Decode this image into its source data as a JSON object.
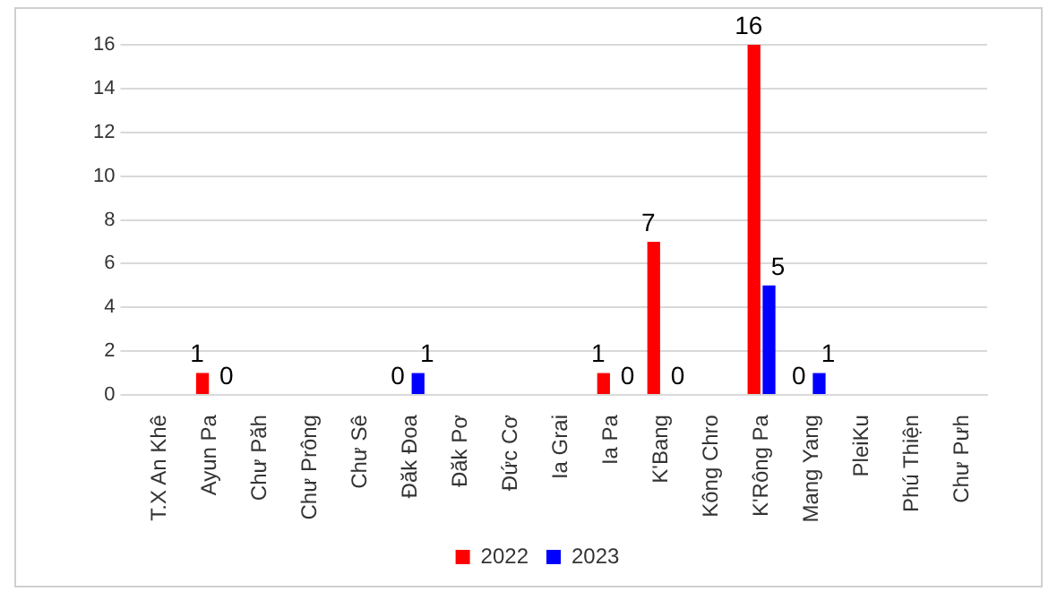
{
  "chart_data": {
    "type": "bar",
    "categories": [
      "T.X An Khê",
      "Ayun Pa",
      "Chư Păh",
      "Chư Prông",
      "Chư Sê",
      "Đăk Đoa",
      "Đăk Pơ",
      "Đức Cơ",
      "Ia Grai",
      "Ia Pa",
      "K'Bang",
      "Kông Chro",
      "K'Rông Pa",
      "Mang Yang",
      "PleiKu",
      "Phú Thiện",
      "Chư Pưh"
    ],
    "series": [
      {
        "name": "2022",
        "color": "#ff0000",
        "values": [
          0,
          1,
          0,
          0,
          0,
          0,
          0,
          0,
          0,
          1,
          7,
          0,
          16,
          0,
          0,
          0,
          0
        ],
        "value_labels": [
          null,
          "1",
          null,
          null,
          null,
          "0",
          null,
          null,
          null,
          "1",
          "7",
          null,
          "16",
          "0",
          null,
          null,
          null
        ]
      },
      {
        "name": "2023",
        "color": "#0000ff",
        "values": [
          0,
          0,
          0,
          0,
          0,
          1,
          0,
          0,
          0,
          0,
          0,
          0,
          5,
          1,
          0,
          0,
          0
        ],
        "value_labels": [
          null,
          "0",
          null,
          null,
          null,
          "1",
          null,
          null,
          null,
          "0",
          "0",
          null,
          "5",
          "1",
          null,
          null,
          null
        ]
      }
    ],
    "ylim": [
      0,
      16
    ],
    "yticks": [
      0,
      2,
      4,
      6,
      8,
      10,
      12,
      14,
      16
    ],
    "grid": "y",
    "legend": "bottom"
  }
}
